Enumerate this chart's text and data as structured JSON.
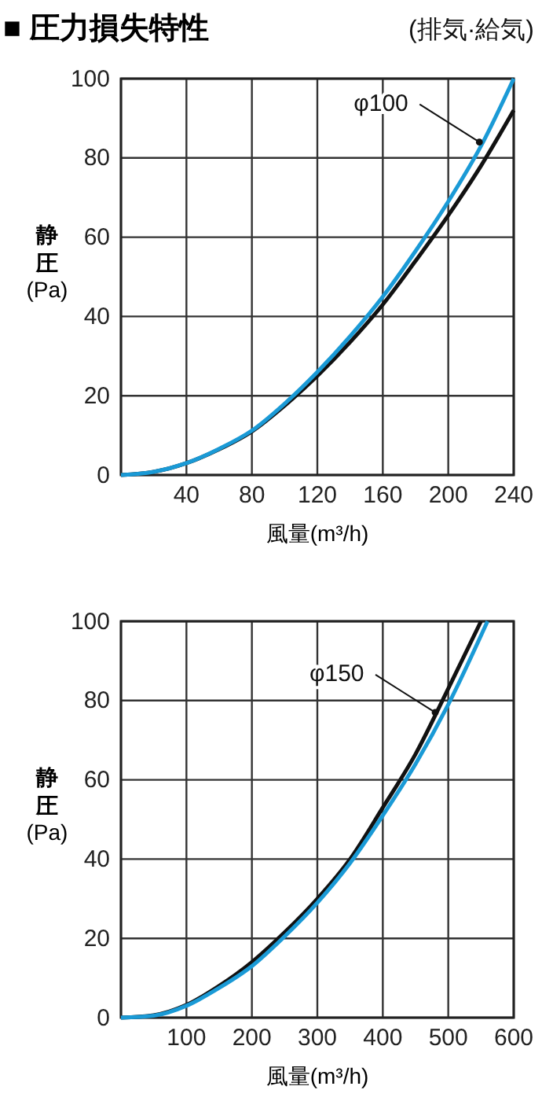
{
  "chart_data": [
    {
      "type": "line",
      "title": "■ 圧力損失特性",
      "subtitle": "(排気·給気)",
      "xlabel": "風量(m³/h)",
      "ylabel": "静圧(Pa)",
      "grid": true,
      "marker": "none",
      "line_style": "solid",
      "xlim": [
        0,
        240
      ],
      "xticks": [
        {
          "value": 0,
          "label": null
        },
        40,
        80,
        120,
        160,
        200,
        240
      ],
      "ylim": [
        0,
        100
      ],
      "yticks": [
        0,
        20,
        40,
        60,
        80,
        100
      ],
      "annotations": [
        {
          "text": "φ100",
          "x": 219,
          "y": 84
        }
      ],
      "series": [
        {
          "color": "#111111",
          "x": [
            0,
            20,
            40,
            60,
            80,
            100,
            120,
            140,
            160,
            180,
            200,
            220,
            240
          ],
          "values": [
            0,
            0.8,
            3,
            6.5,
            11,
            17.5,
            25,
            33.5,
            43,
            54,
            65.5,
            78,
            92
          ]
        },
        {
          "color": "#1a9ad6",
          "x": [
            0,
            20,
            40,
            60,
            80,
            100,
            120,
            140,
            160,
            180,
            200,
            220,
            240
          ],
          "values": [
            0,
            0.8,
            3,
            6.6,
            11.2,
            18,
            26,
            35,
            45,
            56.5,
            69,
            83,
            100
          ]
        }
      ]
    },
    {
      "type": "line",
      "xlabel": "風量(m³/h)",
      "ylabel": "静圧(Pa)",
      "legend": false,
      "grid": true,
      "marker": "none",
      "line_style": "solid",
      "xlim": [
        0,
        600
      ],
      "xticks": [
        {
          "value": 0,
          "label": null
        },
        100,
        200,
        300,
        400,
        500,
        600
      ],
      "ylim": [
        0,
        100
      ],
      "yticks": [
        0,
        20,
        40,
        60,
        80,
        100
      ],
      "annotations": [
        {
          "text": "φ150",
          "x": 480,
          "y": 77
        }
      ],
      "series": [
        {
          "color": "#111111",
          "x": [
            0,
            50,
            100,
            150,
            200,
            250,
            300,
            350,
            400,
            450,
            500,
            550
          ],
          "values": [
            0,
            0.6,
            3.2,
            8,
            14,
            21.5,
            30,
            40,
            53,
            66.5,
            83,
            100
          ]
        },
        {
          "color": "#1a9ad6",
          "x": [
            0,
            50,
            100,
            150,
            200,
            250,
            300,
            350,
            400,
            450,
            500,
            560
          ],
          "values": [
            0,
            0.5,
            3,
            7.5,
            13,
            20.5,
            29,
            39,
            51,
            64,
            79,
            100
          ]
        }
      ]
    }
  ]
}
